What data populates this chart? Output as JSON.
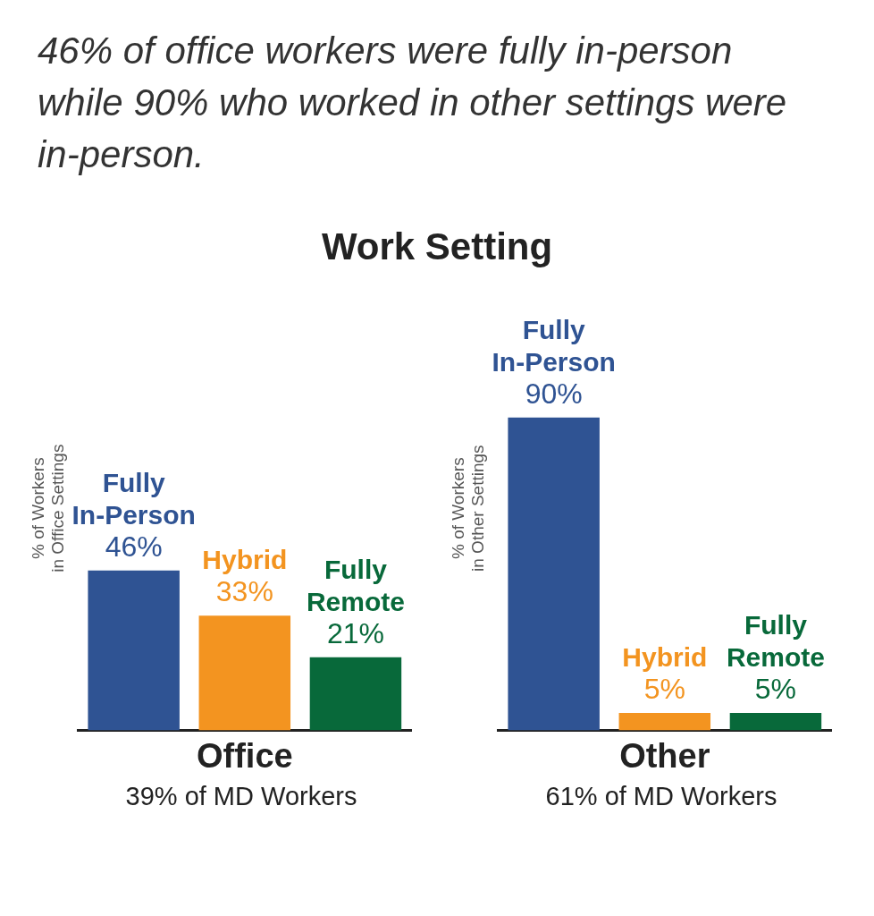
{
  "chart_data": [
    {
      "type": "bar",
      "title": "46% of office workers were fully in-person while 90% who worked in other settings were in-person.",
      "subtitle": "Work Setting",
      "categories": [
        "Fully In-Person",
        "Hybrid",
        "Fully Remote"
      ],
      "values": [
        46,
        33,
        21
      ],
      "colors": [
        "#2f5393",
        "#f39420",
        "#08693a"
      ],
      "value_labels": [
        "46%",
        "33%",
        "21%"
      ],
      "xlabel": "Office",
      "annotations": [
        "39% of MD Workers"
      ],
      "ylabel": "% of Workers\nin Office Settings",
      "tick_labels": "x",
      "grid": false,
      "legend": false
    },
    {
      "type": "bar",
      "categories": [
        "Fully In-Person",
        "Hybrid",
        "Fully Remote"
      ],
      "values": [
        90,
        5,
        5
      ],
      "colors": [
        "#2f5393",
        "#f39420",
        "#08693a"
      ],
      "value_labels": [
        "90%",
        "5%",
        "5%"
      ],
      "xlabel": "Other",
      "annotations": [
        "61% of MD Workers"
      ],
      "ylabel": "% of Workers\nin Other Settings",
      "tick_labels": "x",
      "grid": false,
      "legend": false
    }
  ]
}
